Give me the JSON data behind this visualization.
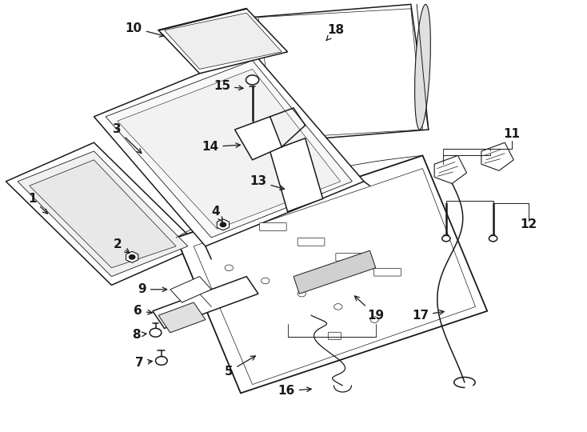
{
  "bg_color": "#ffffff",
  "line_color": "#1a1a1a",
  "figsize": [
    7.34,
    5.4
  ],
  "dpi": 100,
  "font_size": 11,
  "line_width": 1.1
}
